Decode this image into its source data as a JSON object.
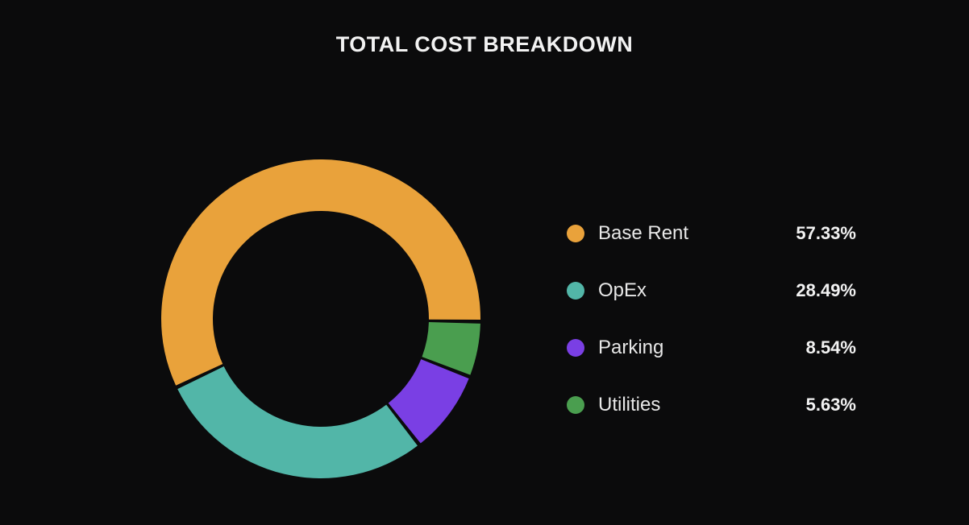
{
  "chart_data": {
    "type": "pie",
    "title": "TOTAL COST BREAKDOWN",
    "categories": [
      "Base Rent",
      "OpEx",
      "Parking",
      "Utilities"
    ],
    "values": [
      57.33,
      28.49,
      8.54,
      5.63
    ],
    "value_labels": [
      "57.33%",
      "28.49%",
      "8.54%",
      "5.63%"
    ],
    "colors": [
      "#e9a23b",
      "#52b6a8",
      "#7a3fe4",
      "#4a9e4f"
    ],
    "style": "donut",
    "legend": "right"
  }
}
